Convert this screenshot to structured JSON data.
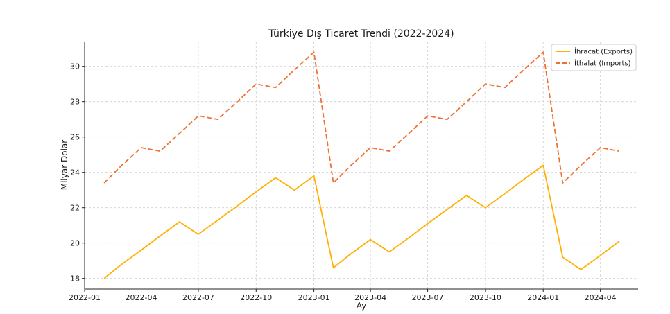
{
  "chart_data": {
    "type": "line",
    "title": "Türkiye Dış Ticaret Trendi (2022-2024)",
    "xlabel": "Ay",
    "ylabel": "Milyar Dolar",
    "x": [
      "2022-02",
      "2022-03",
      "2022-04",
      "2022-05",
      "2022-06",
      "2022-07",
      "2022-08",
      "2022-09",
      "2022-10",
      "2022-11",
      "2022-12",
      "2023-01",
      "2023-02",
      "2023-03",
      "2023-04",
      "2023-05",
      "2023-06",
      "2023-07",
      "2023-08",
      "2023-09",
      "2023-10",
      "2023-11",
      "2023-12",
      "2024-01",
      "2024-02",
      "2024-03",
      "2024-04",
      "2024-05"
    ],
    "xlim": [
      "2022-01-01",
      "2024-05-31"
    ],
    "ylim": [
      17.4,
      31.4
    ],
    "x_ticks": [
      {
        "date": "2022-01-01",
        "label": "2022-01"
      },
      {
        "date": "2022-04-01",
        "label": "2022-04"
      },
      {
        "date": "2022-07-01",
        "label": "2022-07"
      },
      {
        "date": "2022-10-01",
        "label": "2022-10"
      },
      {
        "date": "2023-01-01",
        "label": "2023-01"
      },
      {
        "date": "2023-04-01",
        "label": "2023-04"
      },
      {
        "date": "2023-07-01",
        "label": "2023-07"
      },
      {
        "date": "2023-10-01",
        "label": "2023-10"
      },
      {
        "date": "2024-01-01",
        "label": "2024-01"
      },
      {
        "date": "2024-04-01",
        "label": "2024-04"
      }
    ],
    "y_ticks": [
      18,
      20,
      22,
      24,
      26,
      28,
      30
    ],
    "grid": true,
    "legend_position": "top-right",
    "series": [
      {
        "name": "İhracat (Exports)",
        "color": "#ffb000",
        "dash": "solid",
        "values": [
          18.0,
          18.8,
          19.6,
          20.4,
          21.2,
          20.5,
          21.3,
          22.1,
          22.9,
          23.7,
          23.0,
          23.8,
          18.6,
          19.4,
          20.2,
          19.5,
          20.3,
          21.1,
          21.9,
          22.7,
          22.0,
          22.8,
          23.6,
          24.4,
          19.2,
          18.5,
          19.3,
          20.1
        ]
      },
      {
        "name": "İthalat (Imports)",
        "color": "#f07030",
        "dash": "dashed",
        "values": [
          23.4,
          24.4,
          25.4,
          25.2,
          26.2,
          27.2,
          27.0,
          28.0,
          29.0,
          28.8,
          29.8,
          30.8,
          23.4,
          24.4,
          25.4,
          25.2,
          26.2,
          27.2,
          27.0,
          28.0,
          29.0,
          28.8,
          29.8,
          30.8,
          23.4,
          24.4,
          25.4,
          25.2
        ]
      }
    ]
  }
}
